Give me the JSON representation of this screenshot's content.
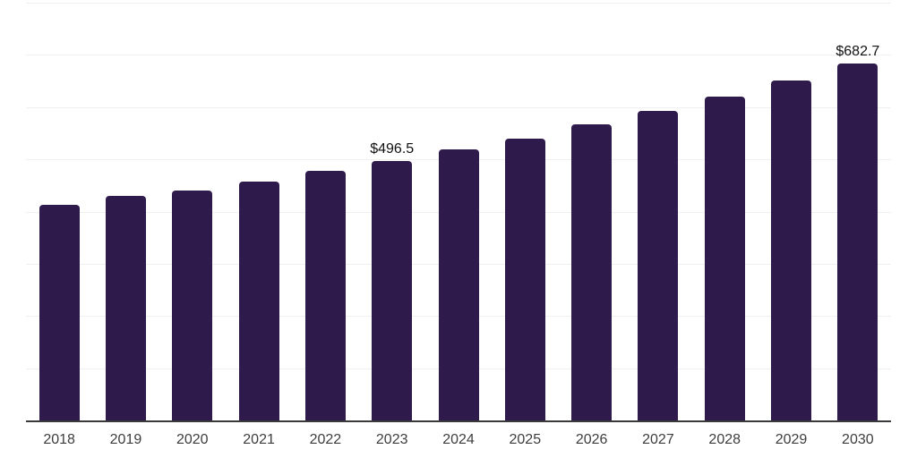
{
  "chart": {
    "background": "#ffffff",
    "bar_color": "#2f1a4c",
    "axis_color": "#3a3a3a",
    "gridline_color": "#f0f0f0",
    "tick_label_color": "#3d3d3d",
    "data_label_color": "#111111"
  },
  "chart_data": {
    "type": "bar",
    "title": "",
    "xlabel": "",
    "ylabel": "",
    "categories": [
      "2018",
      "2019",
      "2020",
      "2021",
      "2022",
      "2023",
      "2024",
      "2025",
      "2026",
      "2027",
      "2028",
      "2029",
      "2030"
    ],
    "values": [
      413.6,
      429.5,
      439.6,
      458.1,
      478.4,
      496.5,
      519.4,
      540.4,
      566.5,
      592.1,
      620.4,
      651.2,
      682.7
    ],
    "data_labels": [
      "",
      "",
      "",
      "",
      "",
      "$496.5",
      "",
      "",
      "",
      "",
      "",
      "",
      "$682.7"
    ],
    "ylim": [
      0,
      800
    ],
    "grid_step": 100,
    "grid": "horizontal",
    "legend": "none",
    "y_axis_tick_labels_visible": false
  }
}
